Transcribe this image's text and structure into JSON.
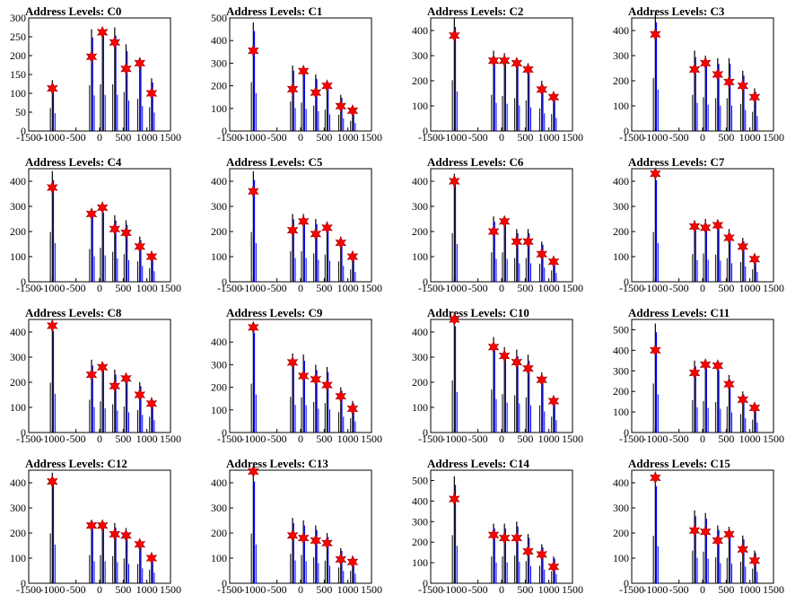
{
  "colors": {
    "axis": "#000000",
    "blue": "#0000ff",
    "black": "#000000",
    "marker": "#ff0000",
    "marker_edge": "#8b0000"
  },
  "chart_data": [
    {
      "type": "bar",
      "title": "Address Levels: C0",
      "xlim": [
        -1500,
        1500
      ],
      "ylim": [
        0,
        300
      ],
      "yticks": [
        0,
        50,
        100,
        150,
        200,
        250,
        300
      ],
      "xticks": [
        "-1500",
        "-1000",
        "-500",
        "0",
        "500",
        "1000",
        "1500"
      ],
      "peaks": [
        -1000,
        -170,
        60,
        320,
        560,
        850,
        1100
      ],
      "bars": [
        135,
        270,
        275,
        275,
        230,
        190,
        140
      ],
      "stars": [
        113,
        197,
        262,
        235,
        165,
        180,
        100
      ]
    },
    {
      "type": "bar",
      "title": "Address Levels: C1",
      "xlim": [
        -1500,
        1500
      ],
      "ylim": [
        0,
        500
      ],
      "yticks": [
        0,
        100,
        200,
        300,
        400,
        500
      ],
      "xticks": [
        "-1500",
        "-1000",
        "-500",
        "0",
        "500",
        "1000",
        "1500"
      ],
      "peaks": [
        -1000,
        -170,
        60,
        320,
        560,
        850,
        1100
      ],
      "bars": [
        480,
        290,
        280,
        250,
        210,
        160,
        100
      ],
      "stars": [
        355,
        185,
        265,
        170,
        200,
        110,
        90
      ]
    },
    {
      "type": "bar",
      "title": "Address Levels: C2",
      "xlim": [
        -1500,
        1500
      ],
      "ylim": [
        0,
        450
      ],
      "yticks": [
        0,
        100,
        200,
        300,
        400
      ],
      "xticks": [
        "-1500",
        "-1000",
        "-500",
        "0",
        "500",
        "1000",
        "1500"
      ],
      "peaks": [
        -1000,
        -170,
        60,
        320,
        560,
        850,
        1100
      ],
      "bars": [
        450,
        320,
        310,
        290,
        270,
        200,
        150
      ],
      "stars": [
        380,
        280,
        280,
        270,
        245,
        165,
        135
      ]
    },
    {
      "type": "bar",
      "title": "Address Levels: C3",
      "xlim": [
        -1500,
        1500
      ],
      "ylim": [
        0,
        450
      ],
      "yticks": [
        0,
        100,
        200,
        300,
        400
      ],
      "xticks": [
        "-1500",
        "-1000",
        "-500",
        "0",
        "500",
        "1000",
        "1500"
      ],
      "peaks": [
        -1000,
        -170,
        60,
        320,
        560,
        850,
        1100
      ],
      "bars": [
        470,
        320,
        300,
        290,
        290,
        240,
        170
      ],
      "stars": [
        385,
        245,
        270,
        225,
        195,
        180,
        135
      ]
    },
    {
      "type": "bar",
      "title": "Address Levels: C4",
      "xlim": [
        -1500,
        1500
      ],
      "ylim": [
        0,
        450
      ],
      "yticks": [
        0,
        100,
        200,
        300,
        400
      ],
      "xticks": [
        "-1500",
        "-1000",
        "-500",
        "0",
        "500",
        "1000",
        "1500"
      ],
      "peaks": [
        -1000,
        -170,
        60,
        320,
        560,
        850,
        1100
      ],
      "bars": [
        440,
        290,
        300,
        265,
        245,
        180,
        120
      ],
      "stars": [
        375,
        270,
        295,
        210,
        195,
        140,
        100
      ]
    },
    {
      "type": "bar",
      "title": "Address Levels: C5",
      "xlim": [
        -1500,
        1500
      ],
      "ylim": [
        0,
        450
      ],
      "yticks": [
        0,
        100,
        200,
        300,
        400
      ],
      "xticks": [
        "-1500",
        "-1000",
        "-500",
        "0",
        "500",
        "1000",
        "1500"
      ],
      "peaks": [
        -1000,
        -170,
        60,
        320,
        560,
        850,
        1100
      ],
      "bars": [
        440,
        270,
        270,
        250,
        240,
        180,
        110
      ],
      "stars": [
        360,
        205,
        240,
        190,
        215,
        155,
        100
      ]
    },
    {
      "type": "bar",
      "title": "Address Levels: C6",
      "xlim": [
        -1500,
        1500
      ],
      "ylim": [
        0,
        450
      ],
      "yticks": [
        0,
        100,
        200,
        300,
        400
      ],
      "xticks": [
        "-1500",
        "-1000",
        "-500",
        "0",
        "500",
        "1000",
        "1500"
      ],
      "peaks": [
        -1000,
        -170,
        60,
        320,
        560,
        850,
        1100
      ],
      "bars": [
        430,
        260,
        260,
        210,
        210,
        160,
        100
      ],
      "stars": [
        400,
        200,
        240,
        160,
        160,
        110,
        80
      ]
    },
    {
      "type": "bar",
      "title": "Address Levels: C7",
      "xlim": [
        -1500,
        1500
      ],
      "ylim": [
        0,
        450
      ],
      "yticks": [
        0,
        100,
        200,
        300,
        400
      ],
      "xticks": [
        "-1500",
        "-1000",
        "-500",
        "0",
        "500",
        "1000",
        "1500"
      ],
      "peaks": [
        -1000,
        -170,
        60,
        320,
        560,
        850,
        1100
      ],
      "bars": [
        440,
        245,
        250,
        240,
        210,
        175,
        110
      ],
      "stars": [
        430,
        220,
        215,
        225,
        175,
        140,
        90
      ]
    },
    {
      "type": "bar",
      "title": "Address Levels: C8",
      "xlim": [
        -1500,
        1500
      ],
      "ylim": [
        0,
        450
      ],
      "yticks": [
        0,
        100,
        200,
        300,
        400
      ],
      "xticks": [
        "-1500",
        "-1000",
        "-500",
        "0",
        "500",
        "1000",
        "1500"
      ],
      "peaks": [
        -1000,
        -170,
        60,
        320,
        560,
        850,
        1100
      ],
      "bars": [
        440,
        290,
        275,
        250,
        230,
        200,
        140
      ],
      "stars": [
        425,
        230,
        260,
        185,
        215,
        150,
        115
      ]
    },
    {
      "type": "bar",
      "title": "Address Levels: C9",
      "xlim": [
        -1500,
        1500
      ],
      "ylim": [
        0,
        500
      ],
      "yticks": [
        0,
        100,
        200,
        300,
        400
      ],
      "xticks": [
        "-1500",
        "-1000",
        "-500",
        "0",
        "500",
        "1000",
        "1500"
      ],
      "peaks": [
        -1000,
        -170,
        60,
        320,
        560,
        850,
        1100
      ],
      "bars": [
        480,
        350,
        345,
        300,
        290,
        200,
        140
      ],
      "stars": [
        465,
        310,
        250,
        235,
        210,
        160,
        105
      ]
    },
    {
      "type": "bar",
      "title": "Address Levels: C10",
      "xlim": [
        -1500,
        1500
      ],
      "ylim": [
        0,
        450
      ],
      "yticks": [
        0,
        100,
        200,
        300,
        400
      ],
      "xticks": [
        "-1500",
        "-1000",
        "-500",
        "0",
        "500",
        "1000",
        "1500"
      ],
      "peaks": [
        -1000,
        -170,
        60,
        320,
        560,
        850,
        1100
      ],
      "bars": [
        460,
        380,
        340,
        330,
        310,
        240,
        140
      ],
      "stars": [
        450,
        340,
        305,
        280,
        255,
        210,
        125
      ]
    },
    {
      "type": "bar",
      "title": "Address Levels: C11",
      "xlim": [
        -1500,
        1500
      ],
      "ylim": [
        0,
        550
      ],
      "yticks": [
        0,
        100,
        200,
        300,
        400,
        500
      ],
      "xticks": [
        "-1500",
        "-1000",
        "-500",
        "0",
        "500",
        "1000",
        "1500"
      ],
      "peaks": [
        -1000,
        -170,
        60,
        320,
        560,
        850,
        1100
      ],
      "bars": [
        530,
        350,
        340,
        330,
        280,
        200,
        140
      ],
      "stars": [
        400,
        290,
        330,
        325,
        235,
        160,
        120
      ]
    },
    {
      "type": "bar",
      "title": "Address Levels: C12",
      "xlim": [
        -1500,
        1500
      ],
      "ylim": [
        0,
        450
      ],
      "yticks": [
        0,
        100,
        200,
        300,
        400
      ],
      "xticks": [
        "-1500",
        "-1000",
        "-500",
        "0",
        "500",
        "1000",
        "1500"
      ],
      "peaks": [
        -1000,
        -170,
        60,
        320,
        560,
        850,
        1100
      ],
      "bars": [
        440,
        250,
        250,
        240,
        220,
        170,
        120
      ],
      "stars": [
        405,
        230,
        230,
        195,
        190,
        155,
        100
      ]
    },
    {
      "type": "bar",
      "title": "Address Levels: C13",
      "xlim": [
        -1500,
        1500
      ],
      "ylim": [
        0,
        450
      ],
      "yticks": [
        0,
        100,
        200,
        300,
        400
      ],
      "xticks": [
        "-1500",
        "-1000",
        "-500",
        "0",
        "500",
        "1000",
        "1500"
      ],
      "peaks": [
        -1000,
        -170,
        60,
        320,
        560,
        850,
        1100
      ],
      "bars": [
        440,
        260,
        250,
        230,
        200,
        140,
        110
      ],
      "stars": [
        445,
        190,
        180,
        170,
        160,
        95,
        85
      ]
    },
    {
      "type": "bar",
      "title": "Address Levels: C14",
      "xlim": [
        -1500,
        1500
      ],
      "ylim": [
        0,
        550
      ],
      "yticks": [
        0,
        100,
        200,
        300,
        400,
        500
      ],
      "xticks": [
        "-1500",
        "-1000",
        "-500",
        "0",
        "500",
        "1000",
        "1500"
      ],
      "peaks": [
        -1000,
        -170,
        60,
        320,
        560,
        850,
        1100
      ],
      "bars": [
        520,
        290,
        290,
        300,
        240,
        190,
        130
      ],
      "stars": [
        410,
        235,
        220,
        220,
        155,
        140,
        80
      ]
    },
    {
      "type": "bar",
      "title": "Address Levels: C15",
      "xlim": [
        -1500,
        1500
      ],
      "ylim": [
        0,
        450
      ],
      "yticks": [
        0,
        100,
        200,
        300,
        400
      ],
      "xticks": [
        "-1500",
        "-1000",
        "-500",
        "0",
        "500",
        "1000",
        "1500"
      ],
      "peaks": [
        -1000,
        -170,
        60,
        320,
        560,
        850,
        1100
      ],
      "bars": [
        420,
        290,
        280,
        230,
        225,
        190,
        130
      ],
      "stars": [
        420,
        210,
        205,
        170,
        195,
        135,
        90
      ]
    }
  ]
}
